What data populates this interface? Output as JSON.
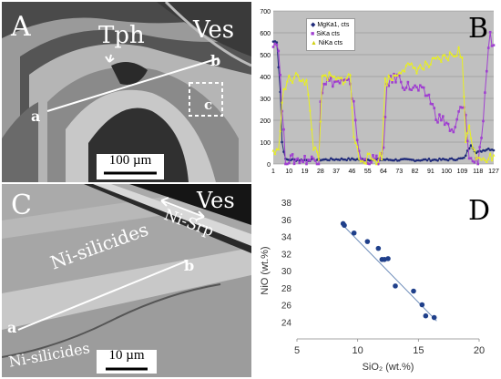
{
  "panelA": {
    "letter": "A",
    "label_tph": "Tph",
    "label_ves": "Ves",
    "point_a": "a",
    "point_b": "b",
    "inset": "c",
    "scale": "100 µm"
  },
  "panelB": {
    "letter": "B",
    "legend": [
      "MgKa1, cts",
      "SiKa cts",
      "NiKa cts"
    ]
  },
  "panelC": {
    "letter": "C",
    "label_ves": "Ves",
    "label_nisrp": "Ni-Srp",
    "label_nisil1": "Ni-silicides",
    "label_nisil2": "Ni-silicides",
    "point_a": "a",
    "point_b": "b",
    "scale": "10 µm"
  },
  "panelD": {
    "letter": "D"
  },
  "colors": {
    "mg": "#1f2a7a",
    "si": "#a040d0",
    "ni": "#e8ef20",
    "d_points": "#1f3f8a"
  },
  "chart_data": [
    {
      "type": "line",
      "x_ticks": [
        1,
        10,
        19,
        28,
        37,
        46,
        55,
        64,
        73,
        82,
        91,
        100,
        109,
        118,
        127
      ],
      "ylim": [
        0,
        700
      ],
      "y_ticks": [
        0,
        100,
        200,
        300,
        400,
        500,
        600,
        700
      ],
      "grid": true,
      "legend_position": "top-left",
      "series": [
        {
          "name": "MgKa1, cts",
          "profile": [
            [
              1,
              560
            ],
            [
              3,
              560
            ],
            [
              5,
              330
            ],
            [
              6,
              100
            ],
            [
              8,
              20
            ],
            [
              20,
              18
            ],
            [
              40,
              22
            ],
            [
              60,
              20
            ],
            [
              80,
              18
            ],
            [
              100,
              20
            ],
            [
              110,
              25
            ],
            [
              114,
              90
            ],
            [
              117,
              50
            ],
            [
              120,
              60
            ],
            [
              124,
              70
            ],
            [
              127,
              65
            ]
          ]
        },
        {
          "name": "SiKa cts",
          "profile": [
            [
              1,
              560
            ],
            [
              4,
              540
            ],
            [
              6,
              250
            ],
            [
              8,
              20
            ],
            [
              27,
              20
            ],
            [
              28,
              300
            ],
            [
              30,
              380
            ],
            [
              44,
              370
            ],
            [
              47,
              290
            ],
            [
              50,
              40
            ],
            [
              52,
              15
            ],
            [
              62,
              20
            ],
            [
              64,
              50
            ],
            [
              66,
              370
            ],
            [
              72,
              400
            ],
            [
              76,
              360
            ],
            [
              84,
              340
            ],
            [
              90,
              310
            ],
            [
              94,
              220
            ],
            [
              100,
              190
            ],
            [
              104,
              130
            ],
            [
              108,
              260
            ],
            [
              111,
              230
            ],
            [
              113,
              20
            ],
            [
              118,
              10
            ],
            [
              121,
              200
            ],
            [
              123,
              440
            ],
            [
              125,
              580
            ],
            [
              127,
              520
            ]
          ]
        },
        {
          "name": "NiKa cts",
          "profile": [
            [
              1,
              60
            ],
            [
              4,
              50
            ],
            [
              6,
              300
            ],
            [
              9,
              380
            ],
            [
              16,
              400
            ],
            [
              20,
              380
            ],
            [
              24,
              80
            ],
            [
              27,
              40
            ],
            [
              29,
              380
            ],
            [
              32,
              400
            ],
            [
              38,
              380
            ],
            [
              45,
              400
            ],
            [
              47,
              130
            ],
            [
              50,
              30
            ],
            [
              60,
              20
            ],
            [
              63,
              40
            ],
            [
              65,
              380
            ],
            [
              70,
              400
            ],
            [
              74,
              440
            ],
            [
              80,
              440
            ],
            [
              86,
              440
            ],
            [
              92,
              460
            ],
            [
              98,
              480
            ],
            [
              104,
              500
            ],
            [
              107,
              520
            ],
            [
              109,
              480
            ],
            [
              111,
              100
            ],
            [
              113,
              200
            ],
            [
              115,
              60
            ],
            [
              118,
              40
            ],
            [
              123,
              30
            ],
            [
              127,
              30
            ]
          ]
        }
      ]
    },
    {
      "type": "scatter",
      "xlabel": "SiO₂ (wt.%)",
      "ylabel": "NiO (wt.%)",
      "xlim": [
        5,
        20
      ],
      "ylim": [
        22,
        38
      ],
      "x_ticks": [
        5,
        10,
        15,
        20
      ],
      "y_ticks": [
        24,
        26,
        28,
        30,
        32,
        34,
        36,
        38
      ],
      "points": [
        [
          8.8,
          35.5
        ],
        [
          8.9,
          35.3
        ],
        [
          9.7,
          34.4
        ],
        [
          10.8,
          33.4
        ],
        [
          11.7,
          32.6
        ],
        [
          12.0,
          31.3
        ],
        [
          12.2,
          31.3
        ],
        [
          12.5,
          31.4
        ],
        [
          13.1,
          28.2
        ],
        [
          14.6,
          27.6
        ],
        [
          15.3,
          26.0
        ],
        [
          15.6,
          24.7
        ],
        [
          16.3,
          24.5
        ]
      ],
      "trendline": [
        [
          8.8,
          35.3
        ],
        [
          16.5,
          24.1
        ]
      ]
    }
  ]
}
